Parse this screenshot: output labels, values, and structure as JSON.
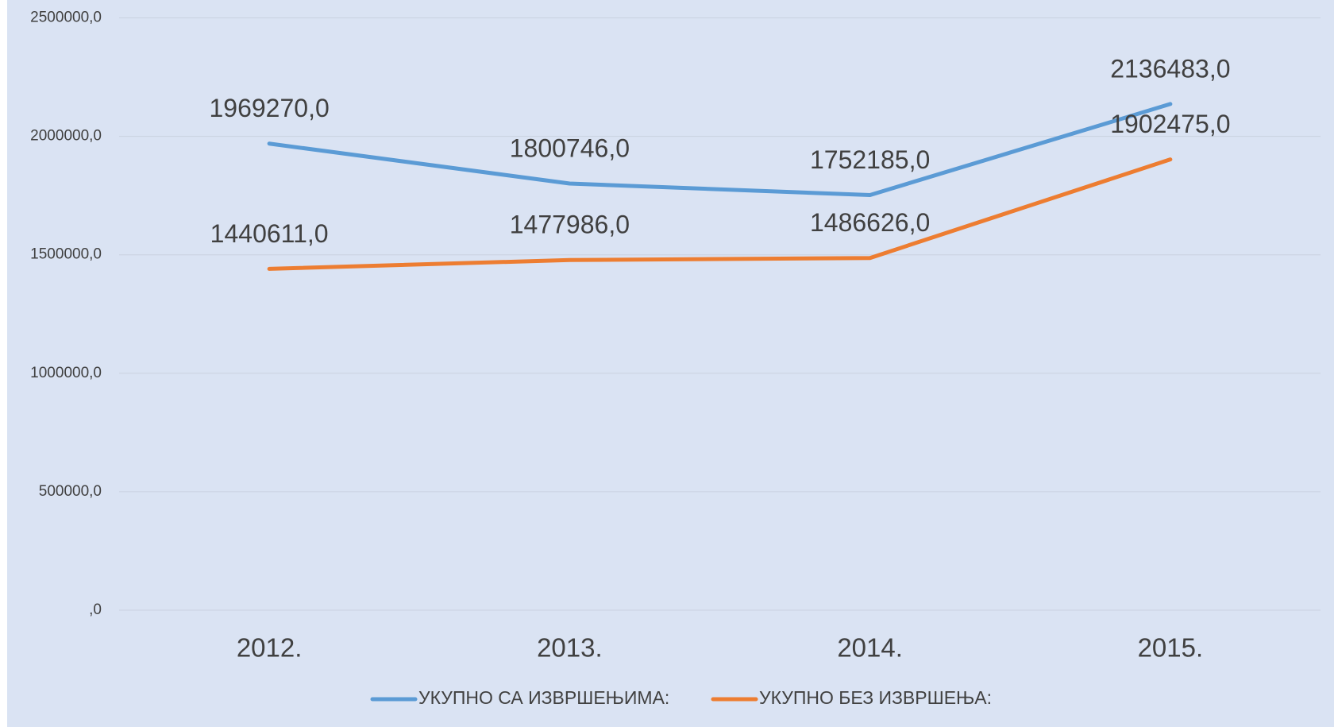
{
  "chart_data": {
    "type": "line",
    "categories": [
      "2012.",
      "2013.",
      "2014.",
      "2015."
    ],
    "series": [
      {
        "name": "УКУПНО СА ИЗВРШЕЊИМА:",
        "color": "#5b9bd5",
        "values": [
          1969270,
          1800746,
          1752185,
          2136483
        ],
        "value_labels": [
          "1969270,0",
          "1800746,0",
          "1752185,0",
          "2136483,0"
        ]
      },
      {
        "name": "УКУПНО БЕЗ ИЗВРШЕЊА:",
        "color": "#ed7d31",
        "values": [
          1440611,
          1477986,
          1486626,
          1902475
        ],
        "value_labels": [
          "1440611,0",
          "1477986,0",
          "1486626,0",
          "1902475,0"
        ]
      }
    ],
    "ylim": [
      0,
      2500000
    ],
    "yticks": [
      {
        "value": 0,
        "label": ",0"
      },
      {
        "value": 500000,
        "label": "500000,0"
      },
      {
        "value": 1000000,
        "label": "1000000,0"
      },
      {
        "value": 1500000,
        "label": "1500000,0"
      },
      {
        "value": 2000000,
        "label": "2000000,0"
      },
      {
        "value": 2500000,
        "label": "2500000,0"
      }
    ],
    "grid": true,
    "legend": "bottom"
  }
}
